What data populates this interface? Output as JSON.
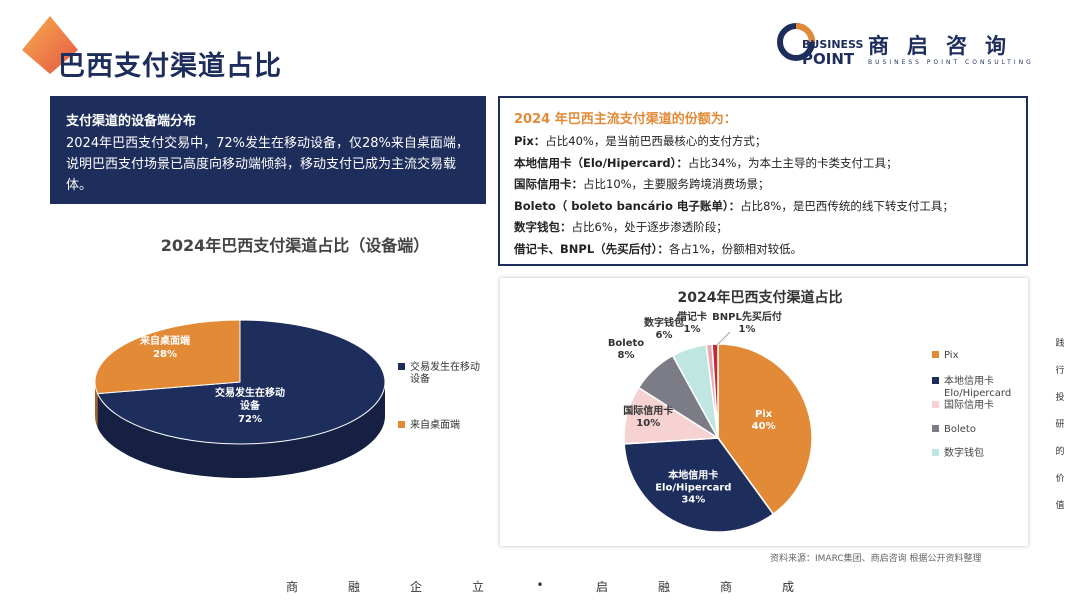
{
  "header": {
    "title": "巴西支付渠道占比",
    "logo": {
      "word1": "BUSINESS",
      "word2": "POINT",
      "cn_name": "商启咨询",
      "tagline": "BUSINESS POINT CONSULTING"
    }
  },
  "left_box": {
    "heading": "支付渠道的设备端分布",
    "body": "2024年巴西支付交易中，72%发生在移动设备，仅28%来自桌面端，说明巴西支付场景已高度向移动端倾斜，移动支付已成为主流交易载体。"
  },
  "right_box": {
    "heading": "2024 年巴西主流支付渠道的份额为：",
    "lines": [
      {
        "label": "Pix：",
        "text": "占比40%，是当前巴西最核心的支付方式；"
      },
      {
        "label": "本地信用卡（Elo/Hipercard）：",
        "text": "占比34%，为本土主导的卡类支付工具；"
      },
      {
        "label": "国际信用卡：",
        "text": "占比10%，主要服务跨境消费场景；"
      },
      {
        "label": "Boleto（ boleto bancário 电子账单）：",
        "text": "占比8%，是巴西传统的线下转支付工具；"
      },
      {
        "label": "数字钱包：",
        "text": "占比6%，处于逐步渗透阶段；"
      },
      {
        "label": "借记卡、BNPL（先买后付）：",
        "text": "各占1%，份额相对较低。"
      }
    ]
  },
  "chart_data": [
    {
      "type": "pie",
      "title": "2024年巴西支付渠道占比（设备端）",
      "legend_position": "right",
      "slices": [
        {
          "name": "交易发生在移动设备",
          "label": "交易发生在移动设备",
          "value": 72,
          "value_label": "72%",
          "color": "#1d2d5c"
        },
        {
          "name": "来自桌面端",
          "label": "来自桌面端",
          "value": 28,
          "value_label": "28%",
          "color": "#e38a37"
        }
      ],
      "legend": [
        {
          "name": "交易发生在移动设备",
          "color": "#1d2d5c"
        },
        {
          "name": "来自桌面端",
          "color": "#e38a37"
        }
      ]
    },
    {
      "type": "pie",
      "title": "2024年巴西支付渠道占比",
      "legend_position": "right",
      "slices": [
        {
          "name": "Pix",
          "label": "Pix",
          "value": 40,
          "value_label": "40%",
          "color": "#e38a37"
        },
        {
          "name": "本地信用卡 Elo/Hipercard",
          "label": "本地信用卡 Elo/Hipercard",
          "value": 34,
          "value_label": "34%",
          "color": "#1d2d5c"
        },
        {
          "name": "国际信用卡",
          "label": "国际信用卡",
          "value": 10,
          "value_label": "10%",
          "color": "#f6d2d2"
        },
        {
          "name": "Boleto",
          "label": "Boleto",
          "value": 8,
          "value_label": "8%",
          "color": "#7c7c86"
        },
        {
          "name": "数字钱包",
          "label": "数字钱包",
          "value": 6,
          "value_label": "6%",
          "color": "#bfe6e1"
        },
        {
          "name": "借记卡",
          "label": "借记卡",
          "value": 1,
          "value_label": "1%",
          "color": "#e9a9b0"
        },
        {
          "name": "BNPL先买后付",
          "label": "BNPL先买后付",
          "value": 1,
          "value_label": "1%",
          "color": "#c22a3a"
        }
      ],
      "legend": [
        {
          "name": "Pix",
          "color": "#e38a37"
        },
        {
          "name": "本地信用卡 Elo/Hipercard",
          "color": "#1d2d5c"
        },
        {
          "name": "国际信用卡",
          "color": "#f6d2d2"
        },
        {
          "name": "Boleto",
          "color": "#7c7c86"
        },
        {
          "name": "数字钱包",
          "color": "#bfe6e1"
        }
      ]
    }
  ],
  "source": "资料来源：IMARC集团、商启咨询 根据公开资料整理",
  "side_text": [
    "践",
    "行",
    "投",
    "研",
    "的",
    "价",
    "值"
  ],
  "footer_slogan": [
    "商",
    "融",
    "企",
    "立",
    "•",
    "启",
    "融",
    "商",
    "成"
  ]
}
